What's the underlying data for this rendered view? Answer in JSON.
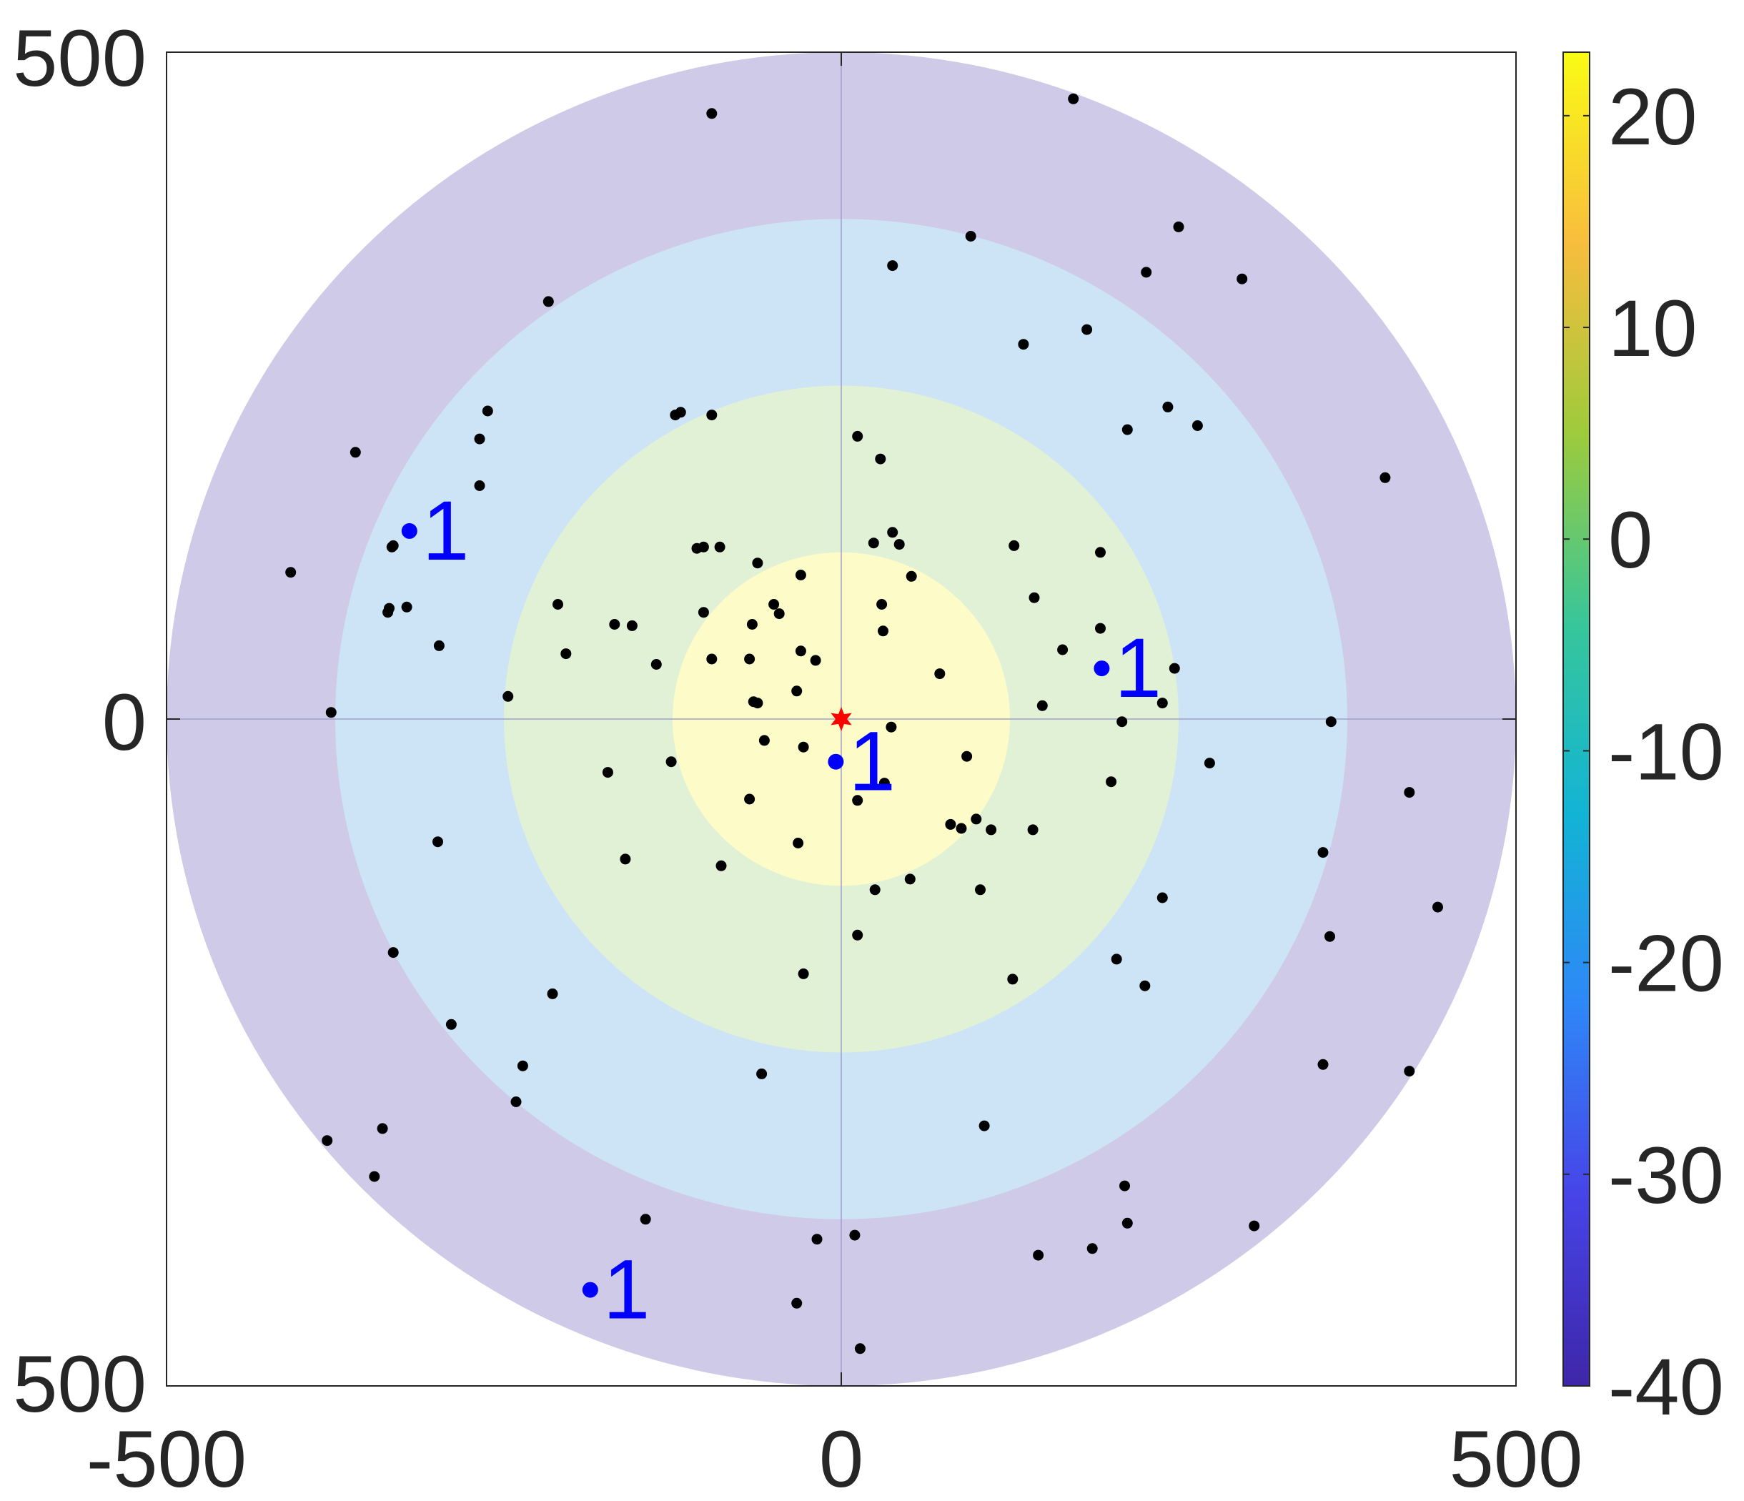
{
  "chart_data": {
    "type": "scatter",
    "title": "",
    "xlabel": "",
    "ylabel": "",
    "xlim": [
      -500,
      500
    ],
    "ylim": [
      -500,
      500
    ],
    "x_tick_labels": [
      "-500",
      "0",
      "500"
    ],
    "y_tick_labels": [
      "500",
      "0",
      "500"
    ],
    "rings": [
      {
        "radius": 500,
        "color": "#cfcae8"
      },
      {
        "radius": 375,
        "color": "#cce4f6"
      },
      {
        "radius": 250,
        "color": "#e1f1d6"
      },
      {
        "radius": 125,
        "color": "#fdfcc8"
      }
    ],
    "center_marker": {
      "x": 0,
      "y": 0,
      "color": "#ff0000",
      "shape": "star"
    },
    "points": [
      [
        -96,
        454
      ],
      [
        172,
        465
      ],
      [
        96,
        362
      ],
      [
        250,
        369
      ],
      [
        38,
        340
      ],
      [
        -217,
        313
      ],
      [
        226,
        335
      ],
      [
        297,
        330
      ],
      [
        182,
        292
      ],
      [
        135,
        281
      ],
      [
        -119,
        230
      ],
      [
        -123,
        228
      ],
      [
        -262,
        231
      ],
      [
        -96,
        228
      ],
      [
        -268,
        210
      ],
      [
        -360,
        200
      ],
      [
        212,
        217
      ],
      [
        264,
        220
      ],
      [
        242,
        234
      ],
      [
        403,
        181
      ],
      [
        -268,
        175
      ],
      [
        12,
        212
      ],
      [
        29,
        195
      ],
      [
        -408,
        110
      ],
      [
        -333,
        129
      ],
      [
        -332,
        130
      ],
      [
        -90,
        129
      ],
      [
        -102,
        129
      ],
      [
        -107,
        128
      ],
      [
        -62,
        117
      ],
      [
        -322,
        84
      ],
      [
        -210,
        86
      ],
      [
        -335,
        83
      ],
      [
        -336,
        80
      ],
      [
        -168,
        71
      ],
      [
        -155,
        70
      ],
      [
        -102,
        80
      ],
      [
        -66,
        71
      ],
      [
        -46,
        79
      ],
      [
        -30,
        108
      ],
      [
        -50,
        86
      ],
      [
        24,
        132
      ],
      [
        38,
        140
      ],
      [
        43,
        131
      ],
      [
        52,
        107
      ],
      [
        128,
        130
      ],
      [
        143,
        91
      ],
      [
        192,
        125
      ],
      [
        164,
        52
      ],
      [
        -204,
        49
      ],
      [
        -298,
        55
      ],
      [
        -137,
        41
      ],
      [
        -96,
        45
      ],
      [
        -68,
        45
      ],
      [
        -30,
        51
      ],
      [
        -19,
        44
      ],
      [
        30,
        86
      ],
      [
        31,
        66
      ],
      [
        73,
        34
      ],
      [
        192,
        68
      ],
      [
        247,
        38
      ],
      [
        -247,
        17
      ],
      [
        -378,
        5
      ],
      [
        -65,
        13
      ],
      [
        -62,
        12
      ],
      [
        -33,
        21
      ],
      [
        -57,
        -16
      ],
      [
        -28,
        -21
      ],
      [
        37,
        -6
      ],
      [
        93,
        -28
      ],
      [
        149,
        10
      ],
      [
        208,
        -2
      ],
      [
        238,
        12
      ],
      [
        363,
        -2
      ],
      [
        -173,
        -40
      ],
      [
        -126,
        -32
      ],
      [
        -68,
        -60
      ],
      [
        32,
        -48
      ],
      [
        12,
        -61
      ],
      [
        273,
        -33
      ],
      [
        200,
        -47
      ],
      [
        421,
        -55
      ],
      [
        81,
        -79
      ],
      [
        89,
        -82
      ],
      [
        111,
        -83
      ],
      [
        100,
        -75
      ],
      [
        142,
        -83
      ],
      [
        -299,
        -92
      ],
      [
        -160,
        -105
      ],
      [
        -89,
        -110
      ],
      [
        -32,
        -93
      ],
      [
        25,
        -128
      ],
      [
        51,
        -120
      ],
      [
        103,
        -128
      ],
      [
        238,
        -134
      ],
      [
        357,
        -100
      ],
      [
        442,
        -141
      ],
      [
        -332,
        -175
      ],
      [
        12,
        -162
      ],
      [
        -214,
        -206
      ],
      [
        -28,
        -191
      ],
      [
        127,
        -195
      ],
      [
        204,
        -180
      ],
      [
        225,
        -200
      ],
      [
        362,
        -163
      ],
      [
        -289,
        -229
      ],
      [
        -236,
        -260
      ],
      [
        -59,
        -266
      ],
      [
        -241,
        -287
      ],
      [
        357,
        -259
      ],
      [
        421,
        -264
      ],
      [
        -381,
        -316
      ],
      [
        -340,
        -307
      ],
      [
        106,
        -305
      ],
      [
        -346,
        -343
      ],
      [
        -145,
        -375
      ],
      [
        -18,
        -390
      ],
      [
        10,
        -387
      ],
      [
        146,
        -402
      ],
      [
        186,
        -397
      ],
      [
        210,
        -350
      ],
      [
        212,
        -378
      ],
      [
        306,
        -380
      ],
      [
        -33,
        -438
      ],
      [
        14,
        -472
      ]
    ],
    "labeled_points": [
      {
        "x": -320,
        "y": 141,
        "label": "1",
        "color": "#0000ff"
      },
      {
        "x": 193,
        "y": 38,
        "label": "1",
        "color": "#0000ff"
      },
      {
        "x": -4,
        "y": -32,
        "label": "1",
        "color": "#0000ff"
      },
      {
        "x": -186,
        "y": -428,
        "label": "1",
        "color": "#0000ff"
      }
    ],
    "colorbar": {
      "min": -40,
      "max": 23,
      "ticks": [
        20,
        10,
        0,
        -10,
        -20,
        -30,
        -40
      ],
      "tick_labels": [
        "20",
        "10",
        "0",
        "-10",
        "-20",
        "-30",
        "-40"
      ],
      "colormap": "parula",
      "stops": [
        "#3e26a8",
        "#4744e8",
        "#2e87f7",
        "#12b4d5",
        "#37c69a",
        "#9dcb3c",
        "#f8bd3d",
        "#f9fb15"
      ]
    }
  }
}
